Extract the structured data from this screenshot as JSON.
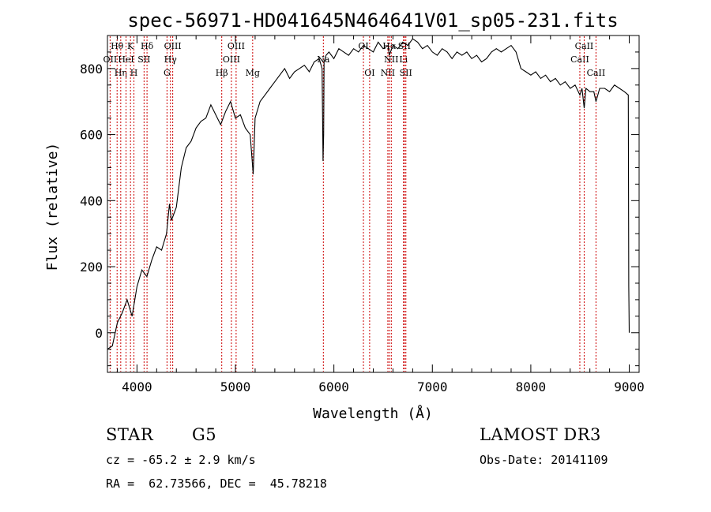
{
  "chart_data": {
    "type": "line",
    "title": "spec-56971-HD041645N464641V01_sp05-231.fits",
    "xlabel": "Wavelength (Å)",
    "ylabel": "Flux (relative)",
    "xlim": [
      3700,
      9100
    ],
    "ylim": [
      -120,
      900
    ],
    "xticks": [
      4000,
      5000,
      6000,
      7000,
      8000,
      9000
    ],
    "yticks": [
      0,
      200,
      400,
      600,
      800
    ],
    "x_tick_labels": [
      "4000",
      "5000",
      "6000",
      "7000",
      "8000",
      "9000"
    ],
    "y_tick_labels": [
      "0",
      "200",
      "400",
      "600",
      "800"
    ],
    "grid": false,
    "series": [
      {
        "name": "flux",
        "x": [
          3700,
          3750,
          3800,
          3850,
          3900,
          3950,
          4000,
          4050,
          4100,
          4150,
          4200,
          4250,
          4300,
          4330,
          4350,
          4400,
          4450,
          4500,
          4550,
          4600,
          4650,
          4700,
          4750,
          4800,
          4850,
          4900,
          4950,
          5000,
          5050,
          5100,
          5150,
          5180,
          5200,
          5250,
          5300,
          5350,
          5400,
          5450,
          5500,
          5550,
          5600,
          5650,
          5700,
          5750,
          5800,
          5850,
          5880,
          5890,
          5896,
          5900,
          5920,
          5950,
          6000,
          6050,
          6100,
          6150,
          6200,
          6250,
          6300,
          6350,
          6400,
          6450,
          6500,
          6550,
          6563,
          6600,
          6650,
          6700,
          6750,
          6800,
          6850,
          6900,
          6950,
          7000,
          7050,
          7100,
          7150,
          7200,
          7250,
          7300,
          7350,
          7400,
          7450,
          7500,
          7550,
          7600,
          7650,
          7700,
          7750,
          7800,
          7850,
          7900,
          7950,
          8000,
          8050,
          8100,
          8150,
          8200,
          8250,
          8300,
          8350,
          8400,
          8450,
          8498,
          8520,
          8542,
          8560,
          8600,
          8640,
          8662,
          8700,
          8750,
          8800,
          8850,
          8900,
          8950,
          8990,
          8995,
          9000
        ],
        "values": [
          -50,
          -40,
          30,
          60,
          100,
          50,
          140,
          190,
          170,
          220,
          260,
          250,
          300,
          390,
          340,
          380,
          500,
          560,
          580,
          620,
          640,
          650,
          690,
          660,
          630,
          670,
          700,
          650,
          660,
          620,
          600,
          480,
          650,
          700,
          720,
          740,
          760,
          780,
          800,
          770,
          790,
          800,
          810,
          790,
          820,
          830,
          800,
          520,
          600,
          820,
          840,
          850,
          830,
          860,
          850,
          840,
          860,
          850,
          870,
          860,
          850,
          880,
          860,
          870,
          840,
          870,
          860,
          880,
          870,
          890,
          880,
          860,
          870,
          850,
          840,
          860,
          850,
          830,
          850,
          840,
          850,
          830,
          840,
          820,
          830,
          850,
          860,
          850,
          860,
          870,
          850,
          800,
          790,
          780,
          790,
          770,
          780,
          760,
          770,
          750,
          760,
          740,
          750,
          720,
          740,
          680,
          740,
          730,
          730,
          700,
          740,
          740,
          730,
          750,
          740,
          730,
          720,
          140,
          0
        ]
      }
    ],
    "lines": [
      {
        "wavelength": 3727,
        "labels": [
          "OII"
        ],
        "row": 2
      },
      {
        "wavelength": 3798,
        "labels": [
          "Hθ"
        ],
        "row": 1
      },
      {
        "wavelength": 3835,
        "labels": [
          "Hη"
        ],
        "row": 3
      },
      {
        "wavelength": 3889,
        "labels": [
          "HeI"
        ],
        "row": 2
      },
      {
        "wavelength": 3934,
        "labels": [
          "K"
        ],
        "row": 1
      },
      {
        "wavelength": 3969,
        "labels": [
          "H"
        ],
        "row": 3
      },
      {
        "wavelength": 4072,
        "labels": [
          "SII"
        ],
        "row": 2
      },
      {
        "wavelength": 4102,
        "labels": [
          "Hδ"
        ],
        "row": 1
      },
      {
        "wavelength": 4305,
        "labels": [
          "G"
        ],
        "row": 3
      },
      {
        "wavelength": 4340,
        "labels": [
          "Hγ"
        ],
        "row": 2
      },
      {
        "wavelength": 4363,
        "labels": [
          "OIII"
        ],
        "row": 1
      },
      {
        "wavelength": 4861,
        "labels": [
          "Hβ"
        ],
        "row": 3
      },
      {
        "wavelength": 4959,
        "labels": [
          "OIII"
        ],
        "row": 2
      },
      {
        "wavelength": 5007,
        "labels": [
          "OIII"
        ],
        "row": 1
      },
      {
        "wavelength": 5175,
        "labels": [
          "Mg"
        ],
        "row": 3
      },
      {
        "wavelength": 5893,
        "labels": [
          "Na"
        ],
        "row": 2
      },
      {
        "wavelength": 6300,
        "labels": [
          "OI"
        ],
        "row": 1
      },
      {
        "wavelength": 6363,
        "labels": [
          "OI"
        ],
        "row": 3
      },
      {
        "wavelength": 6548,
        "labels": [
          "NII"
        ],
        "row": 3
      },
      {
        "wavelength": 6563,
        "labels": [
          "Hα"
        ],
        "row": 1
      },
      {
        "wavelength": 6583,
        "labels": [
          "NII"
        ],
        "row": 2
      },
      {
        "wavelength": 6707,
        "labels": [
          "Li"
        ],
        "row": 2
      },
      {
        "wavelength": 6716,
        "labels": [
          "SII"
        ],
        "row": 1
      },
      {
        "wavelength": 6731,
        "labels": [
          "SII"
        ],
        "row": 3
      },
      {
        "wavelength": 8498,
        "labels": [
          "CaII"
        ],
        "row": 2
      },
      {
        "wavelength": 8542,
        "labels": [
          "CaII"
        ],
        "row": 1
      },
      {
        "wavelength": 8662,
        "labels": [
          "CaII"
        ],
        "row": 3
      }
    ]
  },
  "info": {
    "object_class": "STAR",
    "subclass": "G5",
    "survey": "LAMOST DR3",
    "redshift_text": "cz = -65.2 ± 2.9 km/s",
    "obs_date_text": "Obs-Date: 20141109",
    "coords_text": "RA =  62.73566, DEC =  45.78218"
  }
}
